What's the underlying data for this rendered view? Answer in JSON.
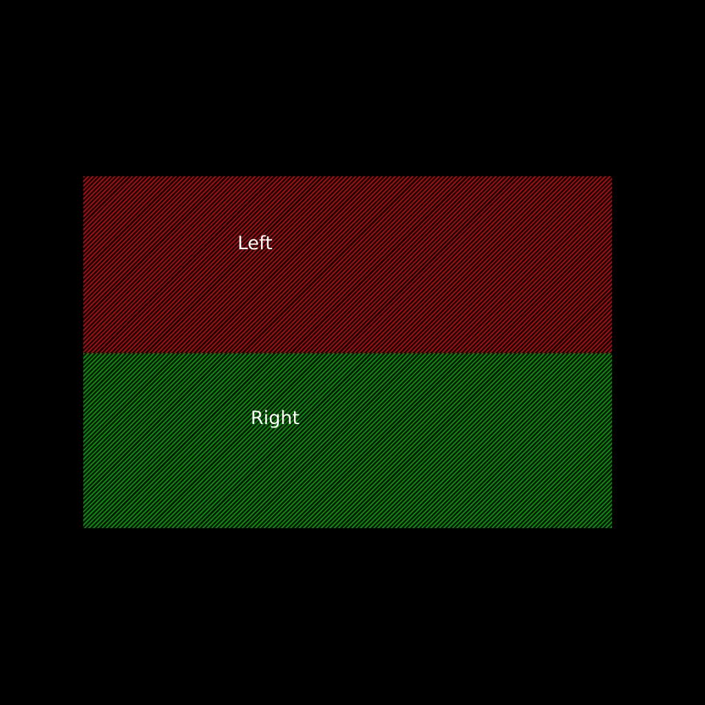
{
  "colors": {
    "background": "#000000",
    "top_panel": "#a01010",
    "bottom_panel": "#0f8a0f",
    "text": "#ffffff"
  },
  "panels": {
    "top": {
      "label": "Left"
    },
    "bottom": {
      "label": "Right"
    }
  }
}
